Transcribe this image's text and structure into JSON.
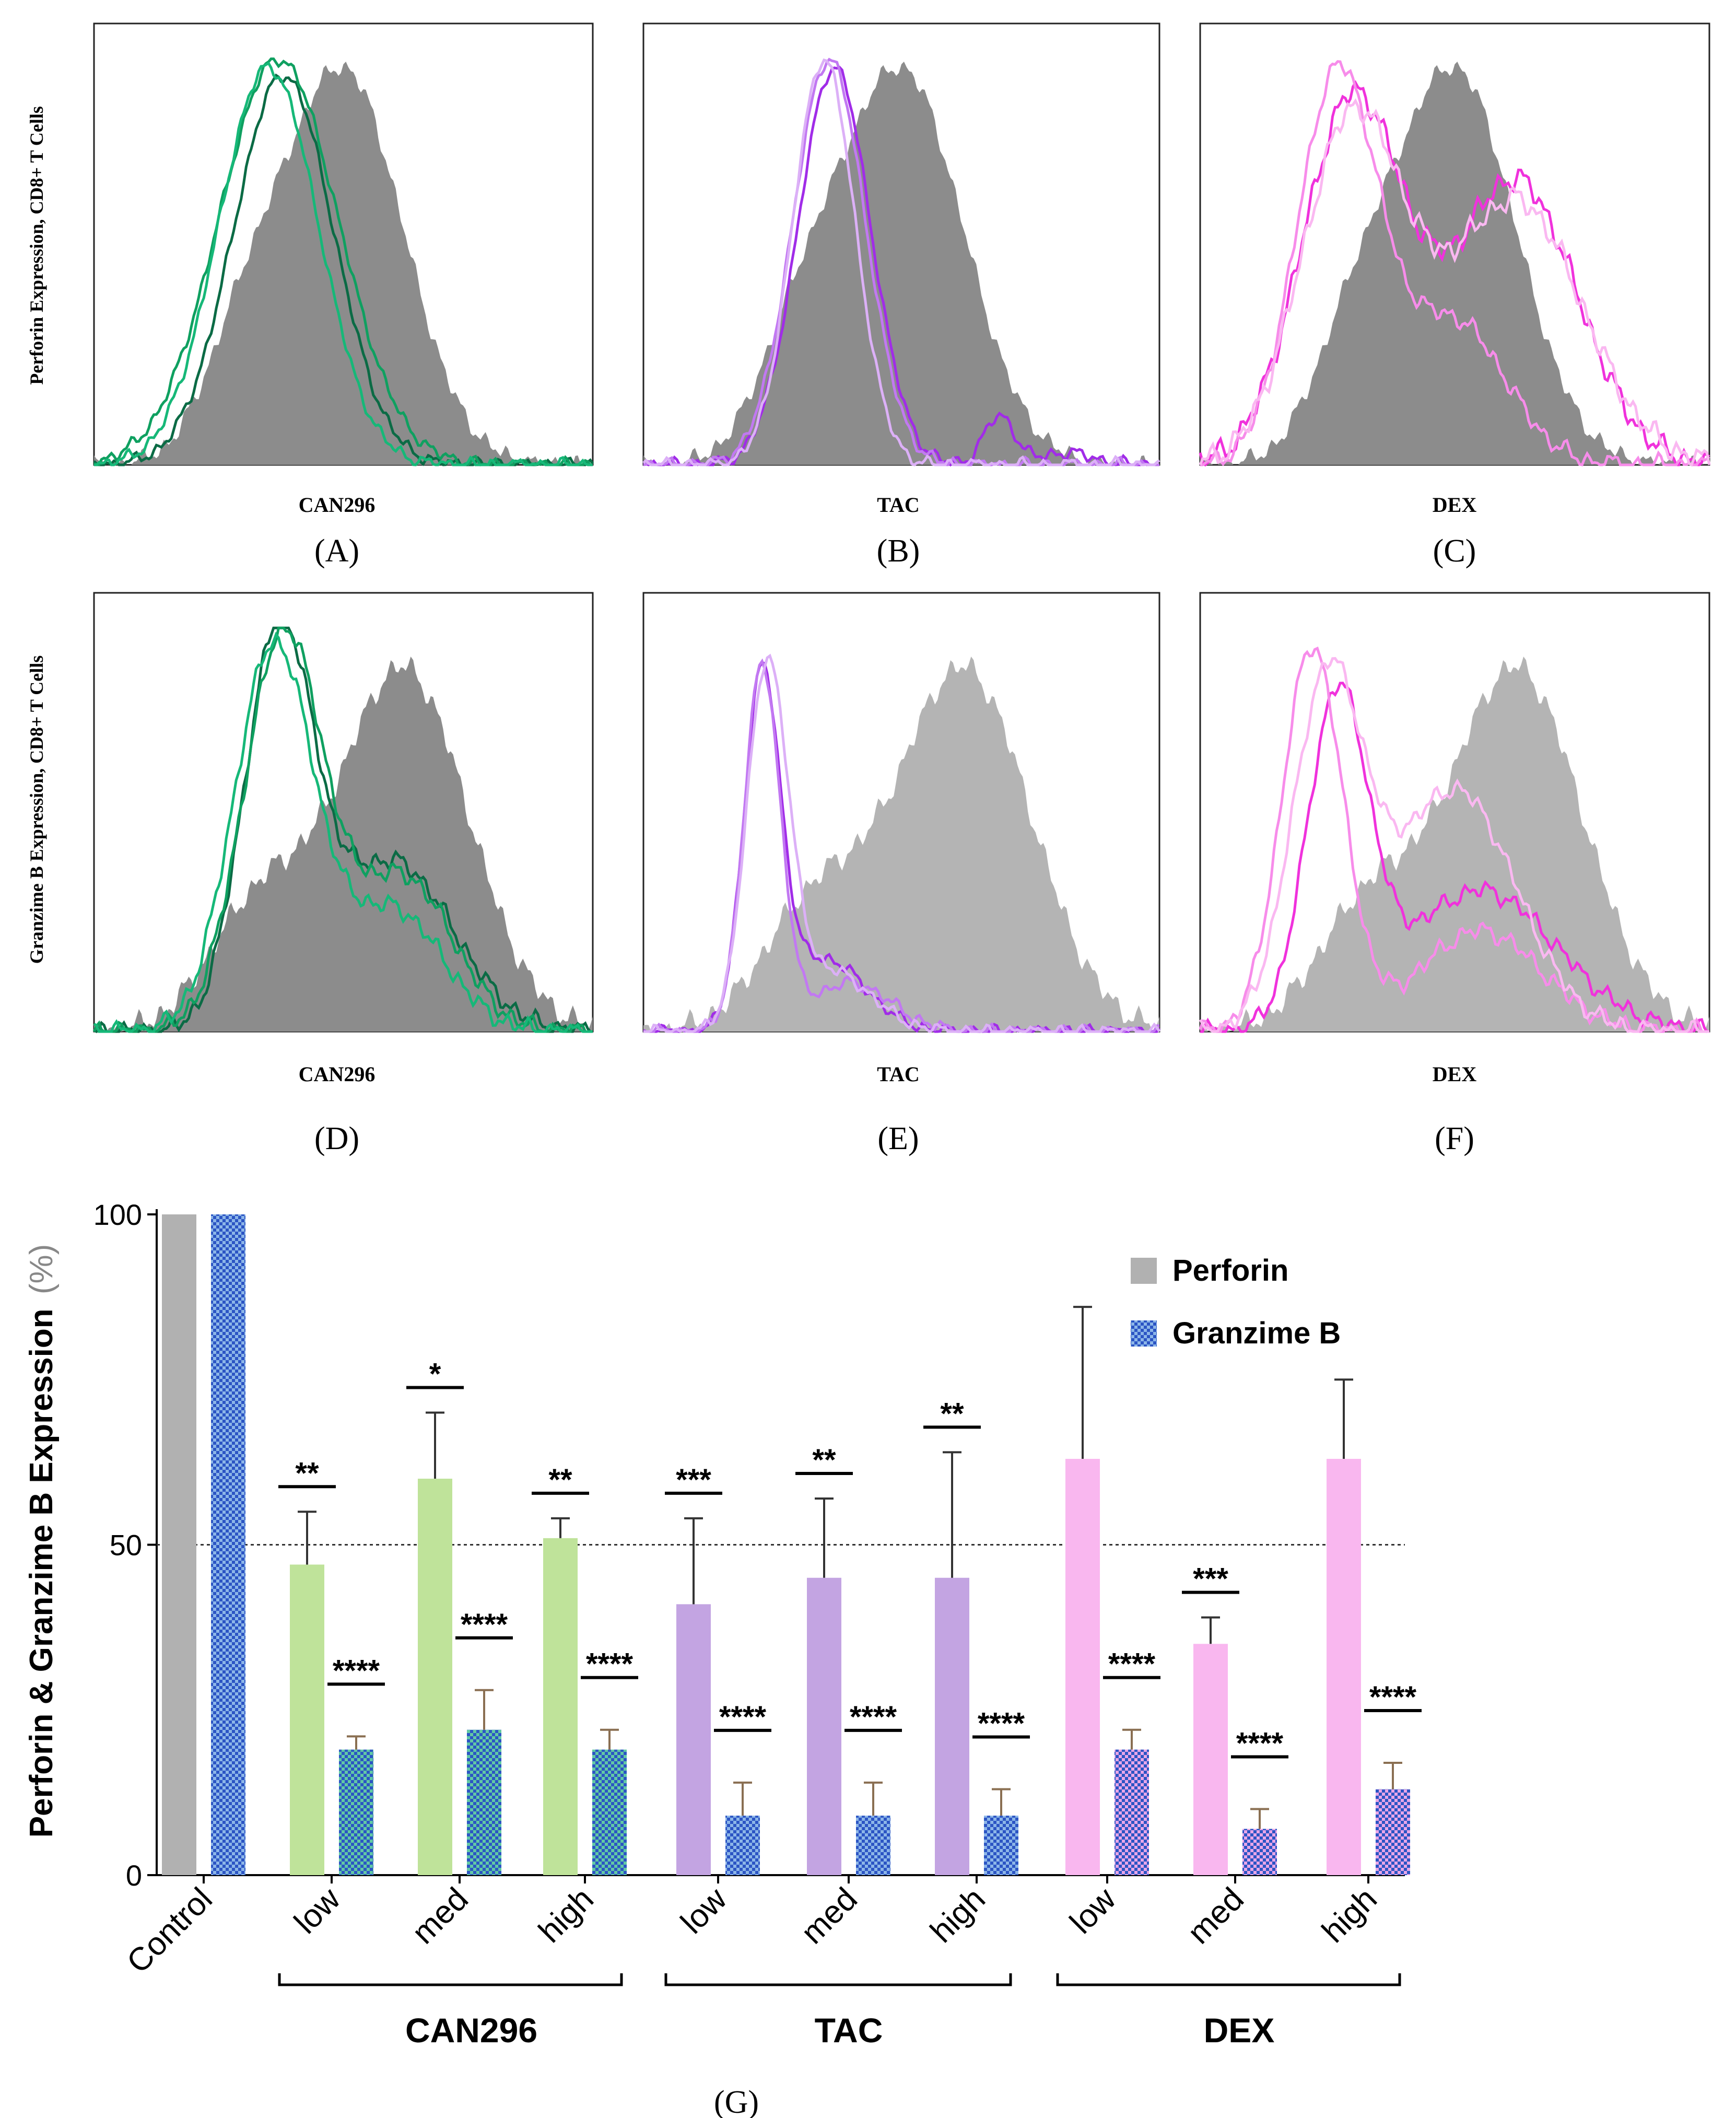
{
  "colors": {
    "control_fill": "#8c8c8c",
    "control_fill_light": "#b4b4b4",
    "can296": [
      "#0b6b45",
      "#0fa060",
      "#16b878"
    ],
    "tac": [
      "#a12ce8",
      "#c278f2",
      "#dcb0f7"
    ],
    "dex": [
      "#f032dc",
      "#f78cea",
      "#fab8f1"
    ],
    "perforin_control": "#b1b1b1",
    "perforin_can296": "#bfe39a",
    "perforin_tac": "#c3a4e2",
    "perforin_dex": "#f9b7ef",
    "granzyme_blue": "#3a63c9",
    "check_green": "#62c9a4",
    "check_blue": "#8cb6e8",
    "check_pink": "#e9a6e7"
  },
  "histograms": {
    "perforin_ylabel": "Perforin Expression, CD8+ T Cells",
    "granzyme_ylabel": "Granzime B Expression, CD8+ T Cells",
    "panels": [
      {
        "letter": "(A)",
        "drug": "CAN296"
      },
      {
        "letter": "(B)",
        "drug": "TAC"
      },
      {
        "letter": "(C)",
        "drug": "DEX"
      },
      {
        "letter": "(D)",
        "drug": "CAN296"
      },
      {
        "letter": "(E)",
        "drug": "TAC"
      },
      {
        "letter": "(F)",
        "drug": "DEX"
      }
    ]
  },
  "chart_data": {
    "type": "bar",
    "title": "",
    "letter": "(G)",
    "ylabel_bold": "Perforin & Granzime B Expression",
    "ylabel_unit": "(%)",
    "ylim": [
      0,
      100
    ],
    "yticks": [
      0,
      50,
      100
    ],
    "reference_line": 50,
    "groups": [
      "CAN296",
      "TAC",
      "DEX"
    ],
    "categories": [
      "Control",
      "low",
      "med",
      "high",
      "low",
      "med",
      "high",
      "low",
      "med",
      "high"
    ],
    "category_group": [
      "",
      "CAN296",
      "CAN296",
      "CAN296",
      "TAC",
      "TAC",
      "TAC",
      "DEX",
      "DEX",
      "DEX"
    ],
    "series": [
      {
        "name": "Perforin",
        "values": [
          100,
          47,
          60,
          51,
          41,
          45,
          45,
          63,
          35,
          63
        ],
        "errors": [
          0,
          8,
          10,
          3,
          13,
          12,
          19,
          23,
          4,
          12
        ],
        "significance": [
          "",
          "**",
          "*",
          "**",
          "***",
          "**",
          "**",
          "",
          "***",
          ""
        ]
      },
      {
        "name": "Granzime B",
        "values": [
          100,
          19,
          22,
          19,
          9,
          9,
          9,
          19,
          7,
          13
        ],
        "errors": [
          0,
          2,
          6,
          3,
          5,
          5,
          4,
          3,
          3,
          4
        ],
        "significance": [
          "",
          "****",
          "****",
          "****",
          "****",
          "****",
          "****",
          "****",
          "****",
          "****"
        ]
      }
    ],
    "legend": [
      "Perforin",
      "Granzime B"
    ],
    "legend_position": "top-right"
  }
}
